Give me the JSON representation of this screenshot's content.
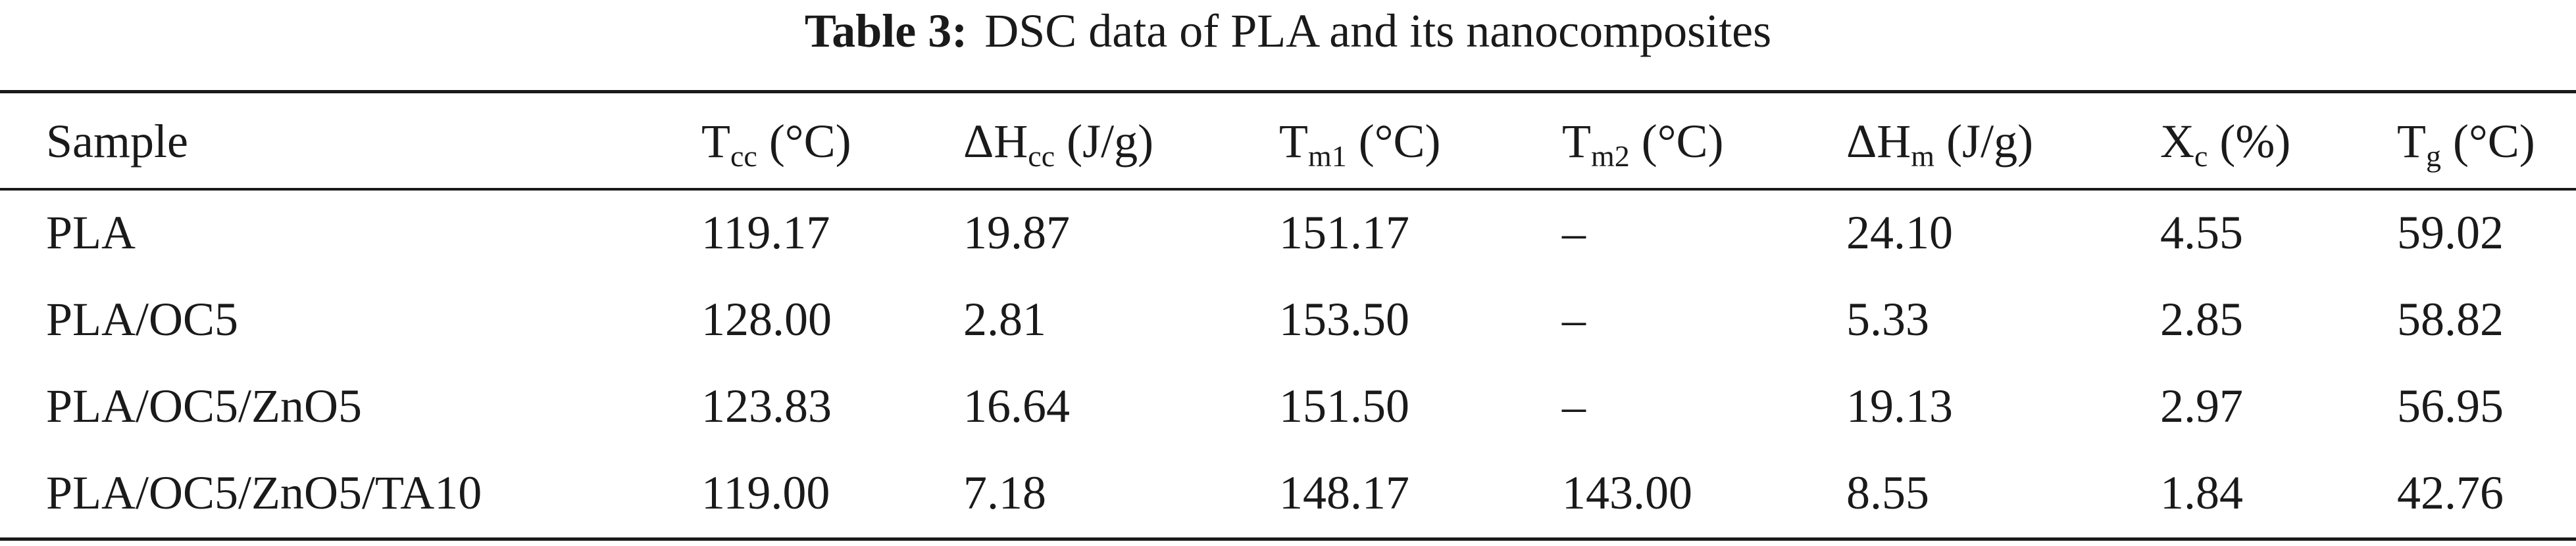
{
  "caption": {
    "label": "Table 3:",
    "text": "DSC data of PLA and its nanocomposites"
  },
  "table": {
    "headers": [
      {
        "main": "Sample",
        "sub": "",
        "unit": ""
      },
      {
        "main": "T",
        "sub": "cc",
        "unit": " (°C)"
      },
      {
        "main": "ΔH",
        "sub": "cc",
        "unit": " (J/g)"
      },
      {
        "main": "T",
        "sub": "m1",
        "unit": " (°C)"
      },
      {
        "main": "T",
        "sub": "m2",
        "unit": " (°C)"
      },
      {
        "main": "ΔH",
        "sub": "m",
        "unit": " (J/g)"
      },
      {
        "main": "X",
        "sub": "c",
        "unit": " (%)"
      },
      {
        "main": "T",
        "sub": "g",
        "unit": " (°C)"
      }
    ],
    "rows": [
      [
        "PLA",
        "119.17",
        "19.87",
        "151.17",
        "–",
        "24.10",
        "4.55",
        "59.02"
      ],
      [
        "PLA/OC5",
        "128.00",
        "2.81",
        "153.50",
        "–",
        "5.33",
        "2.85",
        "58.82"
      ],
      [
        "PLA/OC5/ZnO5",
        "123.83",
        "16.64",
        "151.50",
        "–",
        "19.13",
        "2.97",
        "56.95"
      ],
      [
        "PLA/OC5/ZnO5/TA10",
        "119.00",
        "7.18",
        "148.17",
        "143.00",
        "8.55",
        "1.84",
        "42.76"
      ]
    ]
  }
}
